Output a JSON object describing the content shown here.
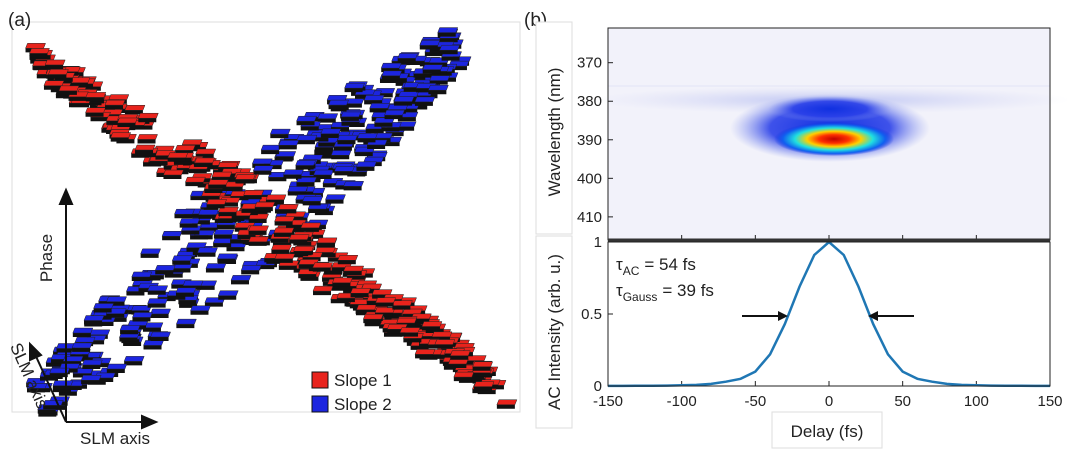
{
  "chart_data": [
    {
      "type": "scatter3d",
      "panel_label": "(a)",
      "axis_labels": {
        "vertical": "Phase",
        "depth": "SLM axis",
        "horizontal": "SLM axis"
      },
      "series": [
        {
          "name": "Slope 1",
          "color": "#e8231c"
        },
        {
          "name": "Slope 2",
          "color": "#1c25e0"
        }
      ]
    },
    {
      "type": "heatmap",
      "panel_label": "(b)",
      "ylabel": "Wavelength (nm)",
      "ylim": [
        416,
        361
      ],
      "yticks": [
        370,
        380,
        390,
        400,
        410
      ]
    },
    {
      "type": "line",
      "ylabel": "AC Intensity (arb. u.)",
      "xlabel": "Delay (fs)",
      "x": [
        -150,
        -140,
        -130,
        -120,
        -110,
        -100,
        -90,
        -80,
        -70,
        -60,
        -50,
        -40,
        -30,
        -20,
        -10,
        0,
        10,
        20,
        30,
        40,
        50,
        60,
        70,
        80,
        90,
        100,
        110,
        120,
        130,
        140,
        150
      ],
      "values": [
        0.001,
        0.001,
        0.002,
        0.002,
        0.003,
        0.005,
        0.008,
        0.015,
        0.03,
        0.05,
        0.1,
        0.22,
        0.43,
        0.69,
        0.91,
        1,
        0.91,
        0.69,
        0.43,
        0.22,
        0.1,
        0.05,
        0.03,
        0.015,
        0.008,
        0.005,
        0.003,
        0.002,
        0.002,
        0.001,
        0.001
      ],
      "color": "#1f77b4",
      "xlim": [
        -150,
        150
      ],
      "xticks": [
        -150,
        -100,
        -50,
        0,
        50,
        100,
        150
      ],
      "ylim": [
        0,
        1
      ],
      "yticks": [
        0,
        0.5,
        1
      ],
      "annotations": [
        {
          "symbol": "τ",
          "sub": "AC",
          "text": "= 54 fs"
        },
        {
          "symbol": "τ",
          "sub": "Gauss",
          "text": "= 39 fs"
        }
      ]
    }
  ]
}
